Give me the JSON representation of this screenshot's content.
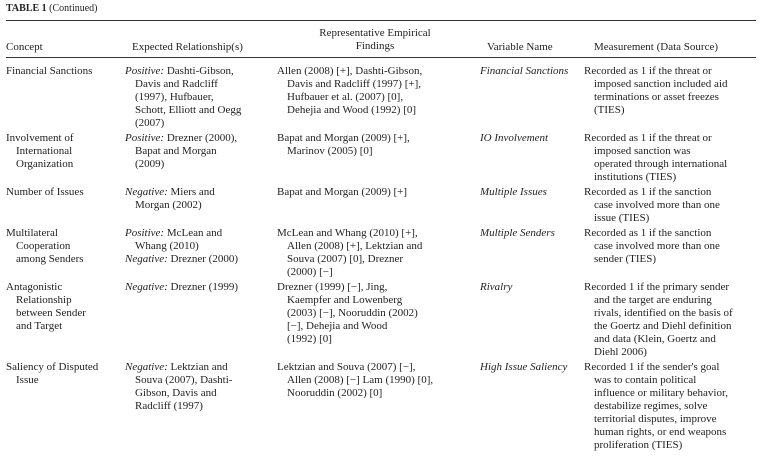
{
  "caption": {
    "label": "TABLE 1",
    "note": "(Continued)"
  },
  "headers": {
    "concept": "Concept",
    "expected": "Expected Relationship(s)",
    "findings_1": "Representative Empirical",
    "findings_2": "Findings",
    "variable": "Variable Name",
    "measurement": "Measurement (Data Source)"
  },
  "rows": [
    {
      "concept": [
        "Financial Sanctions"
      ],
      "expected": [
        {
          "label": "Positive:",
          "lines": [
            " Dashti-Gibson,",
            "Davis and Radcliff",
            "(1997), Hufbauer,",
            "Schott, Elliott and Oegg",
            "(2007)"
          ]
        }
      ],
      "findings": [
        "Allen (2008) [+], Dashti-Gibson,",
        "Davis and Radcliff (1997) [+],",
        "Hufbauer et al. (2007) [0],",
        "Dehejia and Wood (1992) [0]"
      ],
      "variable": "Financial Sanctions",
      "measurement": [
        "Recorded as 1 if the threat or",
        "imposed sanction included aid",
        "terminations or asset freezes",
        "(TIES)"
      ]
    },
    {
      "concept": [
        "Involvement of",
        "International",
        "Organization"
      ],
      "expected": [
        {
          "label": "Positive:",
          "lines": [
            " Drezner (2000),",
            "Bapat and Morgan",
            "(2009)"
          ]
        }
      ],
      "findings": [
        "Bapat and Morgan (2009) [+],",
        "Marinov (2005) [0]"
      ],
      "variable": "IO Involvement",
      "measurement": [
        "Recorded as 1 if the threat or",
        "imposed sanction was",
        "operated through international",
        "institutions (TIES)"
      ]
    },
    {
      "concept": [
        "Number of Issues"
      ],
      "expected": [
        {
          "label": "Negative:",
          "lines": [
            " Miers and",
            "Morgan (2002)"
          ]
        }
      ],
      "findings": [
        "Bapat and Morgan (2009) [+]"
      ],
      "variable": "Multiple Issues",
      "measurement": [
        "Recorded as 1 if the sanction",
        "case involved more than one",
        "issue (TIES)"
      ]
    },
    {
      "concept": [
        "Multilateral",
        "Cooperation",
        "among Senders"
      ],
      "expected": [
        {
          "label": "Positive:",
          "lines": [
            " McLean and",
            "Whang (2010)"
          ]
        },
        {
          "label": "Negative:",
          "lines": [
            " Drezner (2000)"
          ]
        }
      ],
      "findings": [
        "McLean and Whang (2010) [+],",
        "Allen (2008) [+], Lektzian and",
        "Souva (2007) [0], Drezner",
        "(2000) [−]"
      ],
      "variable": "Multiple Senders",
      "measurement": [
        "Recorded as 1 if the sanction",
        "case involved more than one",
        "sender (TIES)"
      ]
    },
    {
      "concept": [
        "Antagonistic",
        "Relationship",
        "between Sender",
        "and Target"
      ],
      "expected": [
        {
          "label": "Negative:",
          "lines": [
            " Drezner (1999)"
          ]
        }
      ],
      "findings": [
        "Drezner (1999) [−], Jing,",
        "Kaempfer and Lowenberg",
        "(2003) [−], Nooruddin (2002)",
        "[−], Dehejia and Wood",
        "(1992) [0]"
      ],
      "variable": "Rivalry",
      "measurement": [
        "Recorded 1 if the primary sender",
        "and the target are enduring",
        "rivals, identified on the basis of",
        "the Goertz and Diehl definition",
        "and data (Klein, Goertz and",
        "Diehl 2006)"
      ]
    },
    {
      "concept": [
        "Saliency of Disputed",
        "Issue"
      ],
      "expected": [
        {
          "label": "Negative:",
          "lines": [
            " Lektzian and",
            "Souva (2007), Dashti-",
            "Gibson, Davis and",
            "Radcliff (1997)"
          ]
        }
      ],
      "findings": [
        "Lektzian and Souva (2007) [−],",
        "Allen (2008) [−] Lam (1990) [0],",
        "Nooruddin (2002) [0]"
      ],
      "variable": "High Issue Saliency",
      "measurement": [
        "Recorded 1 if the sender's goal",
        "was to contain political",
        "influence or military behavior,",
        "destabilize regimes, solve",
        "territorial disputes, improve",
        "human rights, or end weapons",
        "proliferation (TIES)"
      ]
    }
  ]
}
